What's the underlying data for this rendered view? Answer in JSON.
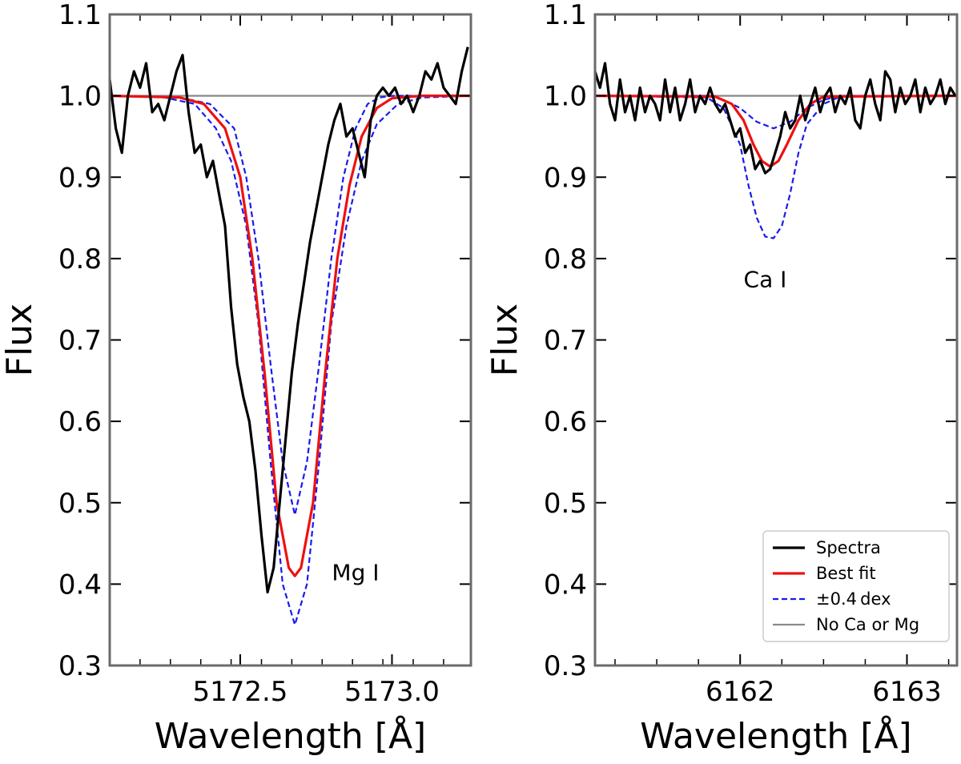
{
  "chart_data": [
    {
      "type": "line",
      "panel": "left",
      "xlabel": "Wavelength [Å]",
      "ylabel": "Flux",
      "xlim": [
        5172.07,
        5173.26
      ],
      "ylim": [
        0.3,
        1.1
      ],
      "xticks": [
        {
          "value": 5172.5,
          "label": "5172.5"
        },
        {
          "value": 5173.0,
          "label": "5173.0"
        }
      ],
      "xminor": [
        5172.17,
        5172.27,
        5172.37,
        5172.47,
        5172.57,
        5172.67,
        5172.77,
        5172.87,
        5172.97,
        5173.07,
        5173.17
      ],
      "yticks": [
        {
          "value": 1.1,
          "label": "1.1"
        },
        {
          "value": 1.0,
          "label": "1.0"
        },
        {
          "value": 0.9,
          "label": "0.9"
        },
        {
          "value": 0.8,
          "label": "0.8"
        },
        {
          "value": 0.7,
          "label": "0.7"
        },
        {
          "value": 0.6,
          "label": "0.6"
        },
        {
          "value": 0.5,
          "label": "0.5"
        },
        {
          "value": 0.4,
          "label": "0.4"
        },
        {
          "value": 0.3,
          "label": "0.3"
        }
      ],
      "annotation": {
        "text": "Mg I",
        "x": 5172.88,
        "y": 0.405
      },
      "series": [
        {
          "name": "No Ca or Mg",
          "style": "gray",
          "x": [
            5172.07,
            5173.26
          ],
          "y": [
            1.0,
            1.0
          ]
        },
        {
          "name": "±0.4 dex",
          "style": "blue-dashed",
          "x": [
            5172.07,
            5172.3,
            5172.4,
            5172.48,
            5172.52,
            5172.56,
            5172.6,
            5172.64,
            5172.68,
            5172.72,
            5172.76,
            5172.8,
            5172.84,
            5172.88,
            5172.92,
            5172.96,
            5173.0,
            5173.1,
            5173.26
          ],
          "y": [
            1.0,
            0.998,
            0.99,
            0.96,
            0.9,
            0.8,
            0.67,
            0.55,
            0.485,
            0.55,
            0.67,
            0.8,
            0.9,
            0.96,
            0.99,
            0.998,
            1.0,
            1.0,
            1.0
          ]
        },
        {
          "name": "±0.4 dex",
          "style": "blue-dashed",
          "x": [
            5172.07,
            5172.25,
            5172.35,
            5172.42,
            5172.47,
            5172.52,
            5172.56,
            5172.6,
            5172.64,
            5172.68,
            5172.72,
            5172.76,
            5172.8,
            5172.85,
            5172.9,
            5172.95,
            5173.02,
            5173.1,
            5173.26
          ],
          "y": [
            1.0,
            0.998,
            0.99,
            0.96,
            0.92,
            0.84,
            0.72,
            0.55,
            0.4,
            0.35,
            0.4,
            0.55,
            0.72,
            0.84,
            0.92,
            0.965,
            0.99,
            0.998,
            1.0
          ]
        },
        {
          "name": "Best fit",
          "style": "red",
          "x": [
            5172.07,
            5172.3,
            5172.38,
            5172.45,
            5172.5,
            5172.54,
            5172.58,
            5172.62,
            5172.66,
            5172.68,
            5172.7,
            5172.74,
            5172.78,
            5172.82,
            5172.86,
            5172.9,
            5172.95,
            5173.0,
            5173.1,
            5173.26
          ],
          "y": [
            1.0,
            0.998,
            0.99,
            0.96,
            0.9,
            0.8,
            0.66,
            0.5,
            0.42,
            0.41,
            0.42,
            0.5,
            0.66,
            0.8,
            0.89,
            0.95,
            0.985,
            0.997,
            1.0,
            1.0
          ]
        },
        {
          "name": "Spectra",
          "style": "black",
          "x": [
            5172.07,
            5172.09,
            5172.11,
            5172.13,
            5172.15,
            5172.17,
            5172.19,
            5172.21,
            5172.23,
            5172.25,
            5172.27,
            5172.29,
            5172.31,
            5172.33,
            5172.35,
            5172.37,
            5172.39,
            5172.41,
            5172.43,
            5172.45,
            5172.47,
            5172.49,
            5172.51,
            5172.53,
            5172.55,
            5172.57,
            5172.59,
            5172.61,
            5172.63,
            5172.65,
            5172.67,
            5172.69,
            5172.71,
            5172.73,
            5172.75,
            5172.77,
            5172.79,
            5172.81,
            5172.83,
            5172.85,
            5172.87,
            5172.89,
            5172.91,
            5172.93,
            5172.95,
            5172.97,
            5172.99,
            5173.01,
            5173.03,
            5173.05,
            5173.07,
            5173.09,
            5173.11,
            5173.13,
            5173.15,
            5173.17,
            5173.19,
            5173.21,
            5173.23,
            5173.25
          ],
          "y": [
            1.02,
            0.96,
            0.93,
            1.0,
            1.03,
            1.01,
            1.04,
            0.98,
            0.99,
            0.97,
            1.0,
            1.03,
            1.05,
            0.98,
            0.93,
            0.94,
            0.9,
            0.92,
            0.88,
            0.84,
            0.74,
            0.67,
            0.63,
            0.6,
            0.54,
            0.46,
            0.39,
            0.42,
            0.5,
            0.58,
            0.66,
            0.72,
            0.77,
            0.82,
            0.86,
            0.9,
            0.94,
            0.97,
            0.99,
            0.95,
            0.96,
            0.93,
            0.9,
            0.97,
            1.0,
            1.01,
            1.0,
            1.01,
            0.99,
            1.0,
            0.98,
            1.0,
            1.03,
            1.02,
            1.04,
            1.01,
            1.0,
            0.99,
            1.03,
            1.06
          ]
        }
      ]
    },
    {
      "type": "line",
      "panel": "right",
      "xlabel": "Wavelength [Å]",
      "ylabel": "Flux",
      "xlim": [
        6161.13,
        6163.3
      ],
      "ylim": [
        0.3,
        1.1
      ],
      "xticks": [
        {
          "value": 6162,
          "label": "6162"
        },
        {
          "value": 6163,
          "label": "6163"
        }
      ],
      "xminor": [
        6161.25,
        6161.5,
        6161.75,
        6162.25,
        6162.5,
        6162.75,
        6163.25
      ],
      "yticks": [
        {
          "value": 1.1,
          "label": "1.1"
        },
        {
          "value": 1.0,
          "label": "1.0"
        },
        {
          "value": 0.9,
          "label": "0.9"
        },
        {
          "value": 0.8,
          "label": "0.8"
        },
        {
          "value": 0.7,
          "label": "0.7"
        },
        {
          "value": 0.6,
          "label": "0.6"
        },
        {
          "value": 0.5,
          "label": "0.5"
        },
        {
          "value": 0.4,
          "label": "0.4"
        },
        {
          "value": 0.3,
          "label": "0.3"
        }
      ],
      "annotation": {
        "text": "Ca I",
        "x": 6162.15,
        "y": 0.765
      },
      "legend": {
        "placement": "lower right",
        "entries": [
          {
            "label": "Spectra",
            "style": "black"
          },
          {
            "label": "Best fit",
            "style": "red"
          },
          {
            "label": "±0.4 dex",
            "style": "blue-dashed"
          },
          {
            "label": "No Ca or Mg",
            "style": "gray"
          }
        ]
      },
      "series": [
        {
          "name": "No Ca or Mg",
          "style": "gray",
          "x": [
            6161.13,
            6163.3
          ],
          "y": [
            1.0,
            1.0
          ]
        },
        {
          "name": "±0.4 dex",
          "style": "blue-dashed",
          "x": [
            6161.13,
            6161.8,
            6161.9,
            6162.0,
            6162.1,
            6162.2,
            6162.3,
            6162.4,
            6162.5,
            6162.6,
            6163.3
          ],
          "y": [
            1.0,
            1.0,
            0.995,
            0.985,
            0.968,
            0.96,
            0.968,
            0.985,
            0.995,
            1.0,
            1.0
          ]
        },
        {
          "name": "±0.4 dex",
          "style": "blue-dashed",
          "x": [
            6161.13,
            6161.8,
            6161.9,
            6162.0,
            6162.05,
            6162.1,
            6162.15,
            6162.2,
            6162.25,
            6162.3,
            6162.35,
            6162.4,
            6162.5,
            6162.6,
            6163.3
          ],
          "y": [
            1.0,
            0.998,
            0.985,
            0.94,
            0.89,
            0.85,
            0.827,
            0.825,
            0.84,
            0.88,
            0.93,
            0.965,
            0.99,
            0.999,
            1.0
          ]
        },
        {
          "name": "Best fit",
          "style": "red",
          "x": [
            6161.13,
            6161.85,
            6161.95,
            6162.02,
            6162.08,
            6162.13,
            6162.18,
            6162.23,
            6162.28,
            6162.35,
            6162.42,
            6162.5,
            6163.3
          ],
          "y": [
            1.0,
            0.999,
            0.99,
            0.97,
            0.94,
            0.92,
            0.913,
            0.92,
            0.94,
            0.97,
            0.99,
            0.999,
            1.0
          ]
        },
        {
          "name": "Spectra",
          "style": "black",
          "x": [
            6161.13,
            6161.16,
            6161.19,
            6161.22,
            6161.25,
            6161.28,
            6161.31,
            6161.34,
            6161.37,
            6161.4,
            6161.43,
            6161.46,
            6161.49,
            6161.52,
            6161.55,
            6161.58,
            6161.61,
            6161.64,
            6161.67,
            6161.7,
            6161.73,
            6161.76,
            6161.79,
            6161.82,
            6161.85,
            6161.88,
            6161.91,
            6161.94,
            6161.97,
            6162.0,
            6162.03,
            6162.06,
            6162.09,
            6162.12,
            6162.15,
            6162.18,
            6162.21,
            6162.24,
            6162.27,
            6162.3,
            6162.33,
            6162.36,
            6162.39,
            6162.42,
            6162.45,
            6162.48,
            6162.51,
            6162.54,
            6162.57,
            6162.6,
            6162.63,
            6162.66,
            6162.69,
            6162.72,
            6162.75,
            6162.78,
            6162.81,
            6162.84,
            6162.87,
            6162.9,
            6162.93,
            6162.96,
            6162.99,
            6163.02,
            6163.05,
            6163.08,
            6163.11,
            6163.14,
            6163.17,
            6163.2,
            6163.23,
            6163.26,
            6163.29
          ],
          "y": [
            1.03,
            1.01,
            1.04,
            0.99,
            0.97,
            1.02,
            0.98,
            1.0,
            0.97,
            1.01,
            0.98,
            1.0,
            0.99,
            0.97,
            1.02,
            0.98,
            1.01,
            0.97,
            0.99,
            1.02,
            0.98,
            1.0,
            0.99,
            1.01,
            0.99,
            0.98,
            0.99,
            0.97,
            0.95,
            0.96,
            0.93,
            0.94,
            0.91,
            0.92,
            0.905,
            0.91,
            0.93,
            0.95,
            0.98,
            0.96,
            0.97,
            1.0,
            0.97,
            0.99,
            1.01,
            0.98,
            1.0,
            1.01,
            0.98,
            1.0,
            0.99,
            1.01,
            0.97,
            0.96,
            1.0,
            1.02,
            0.99,
            0.97,
            1.03,
            1.02,
            0.98,
            1.01,
            0.99,
            1.0,
            1.02,
            0.98,
            1.01,
            0.99,
            1.0,
            1.02,
            0.99,
            1.01,
            1.0
          ]
        }
      ]
    }
  ]
}
